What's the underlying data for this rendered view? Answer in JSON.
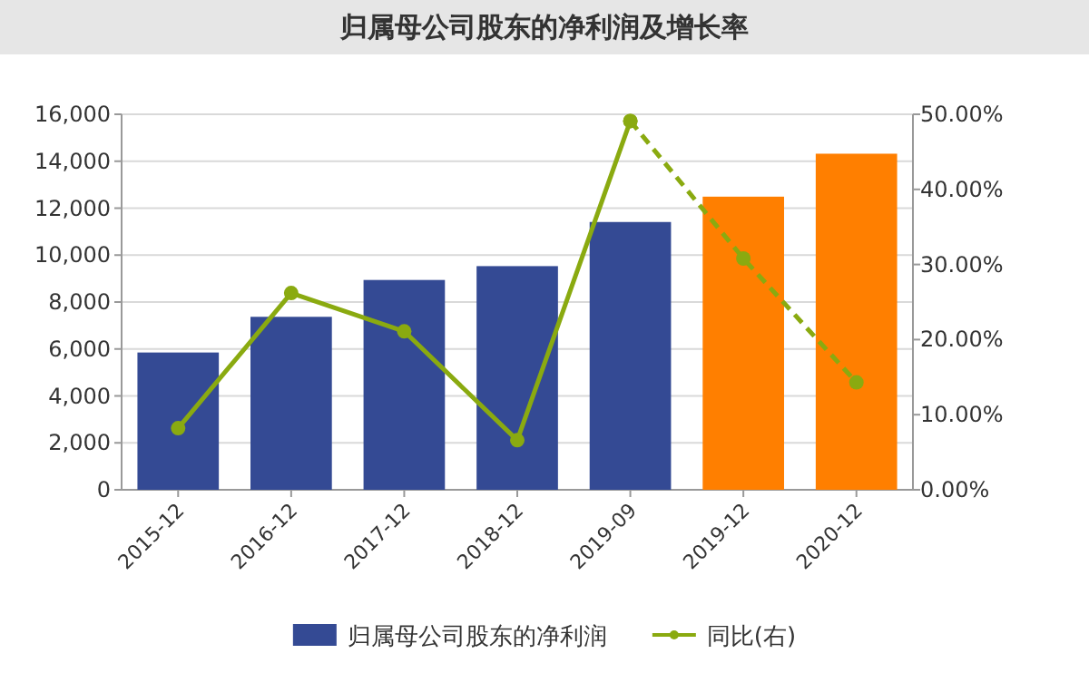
{
  "chart_data": {
    "type": "bar",
    "title": "归属母公司股东的净利润及增长率",
    "categories": [
      "2015-12",
      "2016-12",
      "2017-12",
      "2018-12",
      "2019-09",
      "2019-12",
      "2020-12"
    ],
    "series": [
      {
        "name": "归属母公司股东的净利润",
        "colors": [
          "#344a94",
          "#344a94",
          "#344a94",
          "#344a94",
          "#344a94",
          "#ff7f00",
          "#ff7f00"
        ],
        "values": [
          5850,
          7370,
          8940,
          9530,
          11410,
          12490,
          14320
        ]
      },
      {
        "name": "同比(右)",
        "type": "line",
        "axis": "y2",
        "color": "#8aaa10",
        "line_style": "solid",
        "marker": "circle",
        "values": [
          8.2,
          26.2,
          21.1,
          6.6,
          49.1,
          null,
          null
        ]
      },
      {
        "type": "line",
        "axis": "y2",
        "color": "#8aaa10",
        "line_style": "dashed",
        "marker": "circle",
        "values": [
          null,
          null,
          null,
          null,
          49.1,
          30.8,
          14.3
        ]
      }
    ],
    "ylim": [
      0,
      16000
    ],
    "yticks": [
      0,
      {
        "value": 2000,
        "label": "2,000"
      },
      {
        "value": 4000,
        "label": "4,000"
      },
      {
        "value": 6000,
        "label": "6,000"
      },
      {
        "value": 8000,
        "label": "8,000"
      },
      {
        "value": 10000,
        "label": "10,000"
      },
      {
        "value": 12000,
        "label": "12,000"
      },
      {
        "value": 14000,
        "label": "14,000"
      },
      {
        "value": 16000,
        "label": "16,000"
      }
    ],
    "y2lim": [
      0,
      50
    ],
    "y2ticks": [
      {
        "value": 0,
        "label": "0.00%"
      },
      {
        "value": 10,
        "label": "10.00%"
      },
      {
        "value": 20,
        "label": "20.00%"
      },
      {
        "value": 30,
        "label": "30.00%"
      },
      {
        "value": 40,
        "label": "40.00%"
      },
      {
        "value": 50,
        "label": "50.00%"
      }
    ],
    "grid": "y",
    "legend": "bottom"
  }
}
